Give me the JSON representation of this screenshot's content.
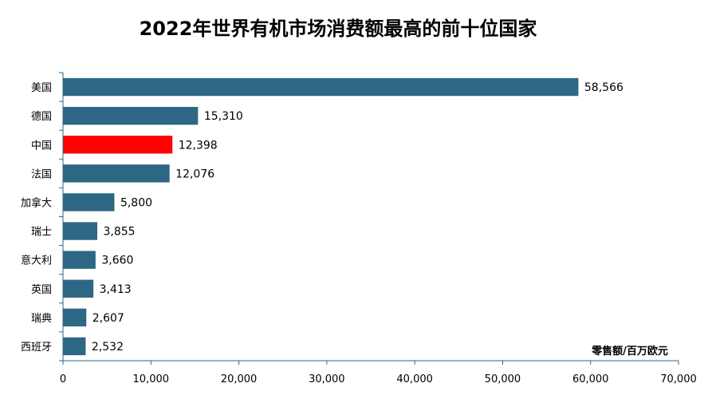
{
  "chart_data": {
    "type": "bar",
    "orientation": "horizontal",
    "title": "2022年世界有机市场消费额最高的前十位国家",
    "unit_label": "零售额/百万欧元",
    "categories": [
      "美国",
      "德国",
      "中国",
      "法国",
      "加拿大",
      "瑞士",
      "意大利",
      "英国",
      "瑞典",
      "西班牙"
    ],
    "values": [
      58566,
      15310,
      12398,
      12076,
      5800,
      3855,
      3660,
      3413,
      2607,
      2532
    ],
    "data_labels": [
      "58,566",
      "15,310",
      "12,398",
      "12,076",
      "5,800",
      "3,855",
      "3,660",
      "3,413",
      "2,607",
      "2,532"
    ],
    "xlim": [
      0,
      70000
    ],
    "x_ticks": [
      0,
      10000,
      20000,
      30000,
      40000,
      50000,
      60000,
      70000
    ],
    "x_tick_labels": [
      "0",
      "10,000",
      "20,000",
      "30,000",
      "40,000",
      "50,000",
      "60,000",
      "70,000"
    ],
    "grid": false,
    "legend": "none",
    "colors": {
      "bar": "#2E6784",
      "highlight": "#FF0000",
      "highlight_category": "中国",
      "axis": "#2E6784"
    }
  }
}
